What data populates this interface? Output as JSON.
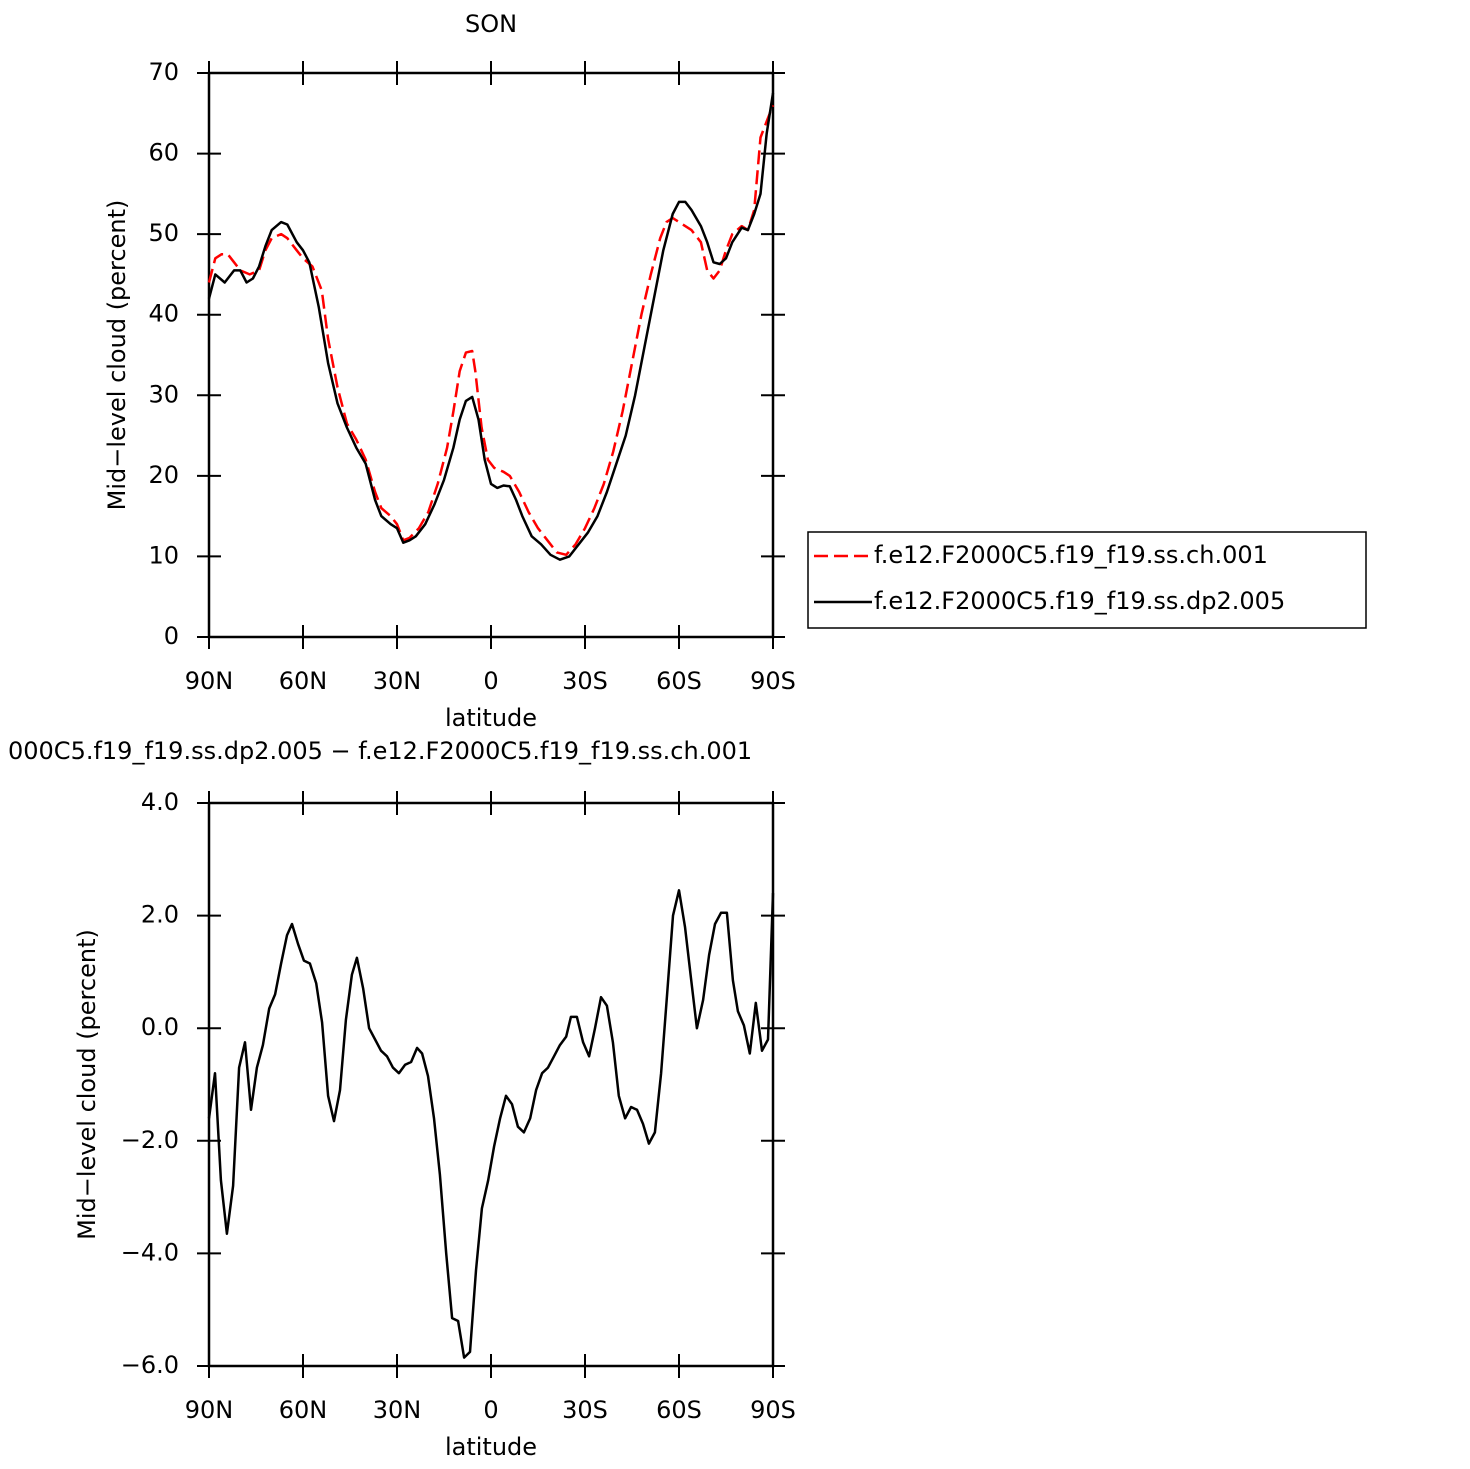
{
  "chart_data": [
    {
      "type": "line",
      "title": "SON",
      "x_label": "latitude",
      "y_label": "Mid−level cloud (percent)",
      "xlim": [
        90,
        -90
      ],
      "xticks": [
        {
          "value": 90,
          "label": "90N"
        },
        {
          "value": 60,
          "label": "60N"
        },
        {
          "value": 30,
          "label": "30N"
        },
        0,
        {
          "value": -30,
          "label": "30S"
        },
        {
          "value": -60,
          "label": "60S"
        },
        {
          "value": -90,
          "label": "90S"
        }
      ],
      "ylim": [
        0,
        70
      ],
      "yticks": [
        0,
        10,
        20,
        30,
        40,
        50,
        60,
        70
      ],
      "legend": "right",
      "series": [
        {
          "name": "f.e12.F2000C5.f19_f19.ss.ch.001",
          "color": "#ff0000",
          "line_style": "dashed",
          "x": [
            90,
            88,
            86,
            84,
            82,
            80,
            77,
            74,
            72,
            70,
            67,
            65,
            62,
            60,
            57,
            54,
            52,
            49,
            46,
            43,
            40,
            37,
            35,
            32,
            30,
            28,
            26,
            23,
            20,
            17,
            14,
            12,
            10,
            8,
            6,
            5,
            3,
            1,
            -1,
            -4,
            -6,
            -9,
            -12,
            -15,
            -18,
            -21,
            -24,
            -27,
            -30,
            -33,
            -36,
            -39,
            -42,
            -45,
            -48,
            -51,
            -54,
            -56,
            -58,
            -60,
            -64,
            -67,
            -69,
            -71,
            -73,
            -75,
            -77,
            -80,
            -82,
            -84,
            -86,
            -88,
            -90
          ],
          "values": [
            44,
            47,
            47.5,
            47.5,
            46.5,
            45.5,
            45,
            45.5,
            48,
            49.5,
            50,
            49.5,
            48,
            47,
            46,
            43,
            37,
            31,
            26.5,
            24.5,
            22,
            18,
            16,
            15,
            14,
            12,
            12.3,
            13.5,
            15.5,
            19,
            23.5,
            28,
            33,
            35.3,
            35.5,
            33,
            26,
            22,
            21,
            20.5,
            20,
            18,
            15.5,
            13.5,
            12,
            10.5,
            10.2,
            11.5,
            13.5,
            16,
            19,
            23,
            28,
            34,
            40,
            45,
            49.5,
            51.5,
            52,
            51.5,
            50.5,
            49,
            45.5,
            44.5,
            45.5,
            48,
            50,
            51,
            50.5,
            53,
            62,
            64,
            66
          ]
        },
        {
          "name": "f.e12.F2000C5.f19_f19.ss.dp2.005",
          "color": "#000000",
          "line_style": "solid",
          "x": [
            90,
            88,
            85,
            82,
            80,
            78,
            76,
            74,
            72,
            70,
            67,
            65,
            62,
            60,
            58,
            55,
            52,
            49,
            46,
            43,
            40,
            37,
            35,
            32,
            30,
            28,
            26,
            24,
            21,
            18,
            15,
            12,
            10,
            8,
            6,
            4,
            2,
            0,
            -2,
            -4,
            -6,
            -8,
            -10,
            -13,
            -16,
            -19,
            -22,
            -25,
            -28,
            -31,
            -34,
            -37,
            -40,
            -43,
            -46,
            -49,
            -52,
            -55,
            -58,
            -60,
            -62,
            -64,
            -67,
            -69,
            -71,
            -73,
            -75,
            -77,
            -80,
            -82,
            -84,
            -86,
            -88,
            -90
          ],
          "values": [
            42,
            45,
            44,
            45.5,
            45.5,
            44,
            44.5,
            46,
            48.5,
            50.5,
            51.5,
            51.2,
            49,
            48,
            46.5,
            41,
            34,
            29,
            26,
            23.5,
            21.5,
            17,
            15,
            14,
            13.5,
            11.7,
            12,
            12.5,
            14,
            16.5,
            19.5,
            23.5,
            27,
            29.3,
            29.8,
            27,
            22,
            19,
            18.5,
            18.8,
            18.7,
            17,
            15,
            12.5,
            11.5,
            10.2,
            9.6,
            10,
            11.5,
            13,
            15,
            18,
            21.5,
            25,
            30,
            36,
            42,
            48,
            52.5,
            54,
            54,
            53,
            51,
            49,
            46.5,
            46.3,
            47,
            49,
            50.8,
            50.5,
            52.5,
            55,
            62.5,
            67.5
          ]
        }
      ]
    },
    {
      "type": "line",
      "title": "000C5.f19_f19.ss.dp2.005 − f.e12.F2000C5.f19_f19.ss.ch.001",
      "x_label": "latitude",
      "y_label": "Mid−level cloud (percent)",
      "xlim": [
        90,
        -90
      ],
      "xticks": [
        {
          "value": 90,
          "label": "90N"
        },
        {
          "value": 60,
          "label": "60N"
        },
        {
          "value": 30,
          "label": "30N"
        },
        0,
        {
          "value": -30,
          "label": "30S"
        },
        {
          "value": -60,
          "label": "60S"
        },
        {
          "value": -90,
          "label": "90S"
        }
      ],
      "ylim": [
        -6,
        4
      ],
      "yticks": [
        {
          "value": -6,
          "label": "−6.0"
        },
        {
          "value": -4,
          "label": "−4.0"
        },
        {
          "value": -2,
          "label": "−2.0"
        },
        {
          "value": 0,
          "label": "0.0"
        },
        {
          "value": 2,
          "label": "2.0"
        },
        {
          "value": 4,
          "label": "4.0"
        }
      ],
      "color": "#000000",
      "x": [
        90,
        88.1,
        86.2,
        84.3,
        82.3,
        80.4,
        78.5,
        76.6,
        74.7,
        72.8,
        70.8,
        68.9,
        67,
        65.1,
        63.5,
        61.6,
        59.7,
        57.8,
        55.8,
        53.9,
        52,
        50.1,
        48.2,
        46.3,
        44.4,
        42.8,
        40.8,
        38.9,
        37,
        35.1,
        33.2,
        31.3,
        29.4,
        27.4,
        25.5,
        23.6,
        22,
        20.1,
        18.2,
        16.3,
        14.3,
        12.4,
        10.5,
        8.6,
        6.7,
        4.8,
        2.9,
        0.9,
        -1,
        -2.9,
        -4.8,
        -6.7,
        -8.6,
        -10.5,
        -12.5,
        -14.4,
        -16.3,
        -18.2,
        -20.1,
        -22,
        -24,
        -25.5,
        -27.4,
        -29.4,
        -31.3,
        -33.2,
        -35.1,
        -37,
        -38.9,
        -40.8,
        -42.8,
        -44.7,
        -46.6,
        -48.5,
        -50.4,
        -52.3,
        -54.3,
        -56.2,
        -58.1,
        -60,
        -61.9,
        -63.8,
        -65.7,
        -67.7,
        -69.6,
        -71.5,
        -73.4,
        -75.3,
        -77.2,
        -78.8,
        -80.7,
        -82.6,
        -84.5,
        -86.5,
        -88.4,
        -90
      ],
      "values": [
        -1.6,
        -0.8,
        -2.7,
        -3.65,
        -2.8,
        -0.7,
        -0.25,
        -1.45,
        -0.7,
        -0.3,
        0.35,
        0.6,
        1.15,
        1.65,
        1.85,
        1.5,
        1.2,
        1.15,
        0.8,
        0.1,
        -1.2,
        -1.65,
        -1.1,
        0.15,
        0.95,
        1.25,
        0.7,
        0,
        -0.2,
        -0.4,
        -0.5,
        -0.7,
        -0.8,
        -0.65,
        -0.6,
        -0.35,
        -0.45,
        -0.85,
        -1.6,
        -2.6,
        -4,
        -5.15,
        -5.2,
        -5.85,
        -5.75,
        -4.3,
        -3.2,
        -2.7,
        -2.1,
        -1.6,
        -1.2,
        -1.35,
        -1.75,
        -1.85,
        -1.6,
        -1.1,
        -0.8,
        -0.7,
        -0.5,
        -0.3,
        -0.15,
        0.2,
        0.2,
        -0.25,
        -0.5,
        0,
        0.55,
        0.4,
        -0.25,
        -1.2,
        -1.6,
        -1.4,
        -1.45,
        -1.7,
        -2.05,
        -1.85,
        -0.8,
        0.6,
        2,
        2.45,
        1.8,
        0.9,
        0,
        0.5,
        1.3,
        1.85,
        2.05,
        2.05,
        0.85,
        0.3,
        0.05,
        -0.45,
        0.45,
        -0.4,
        -0.2,
        2.4
      ]
    }
  ]
}
